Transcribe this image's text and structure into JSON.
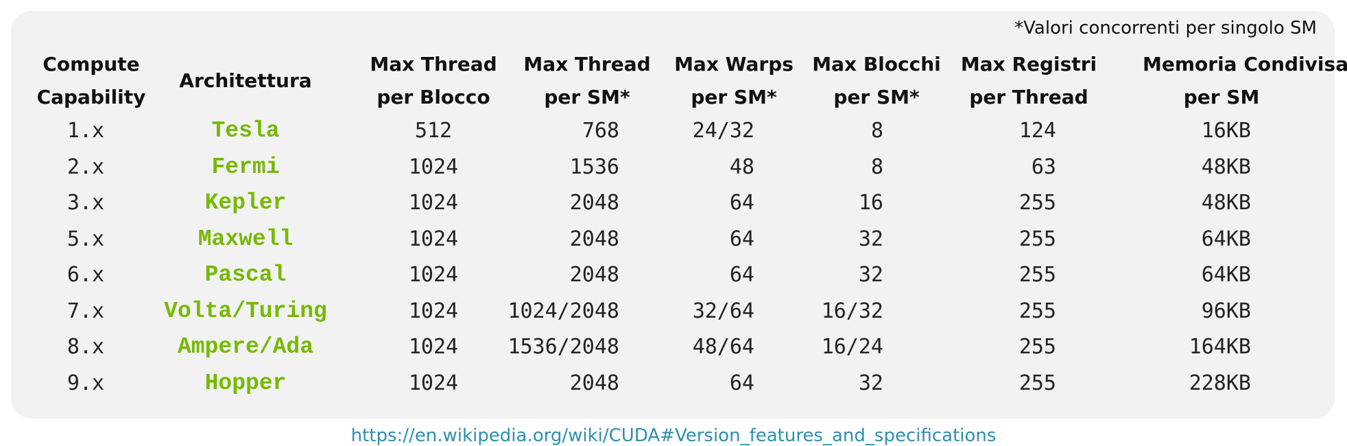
{
  "note": "*Valori concorrenti per singolo SM",
  "headers": [
    [
      "Compute",
      "Capability"
    ],
    [
      "Architettura"
    ],
    [
      "Max Thread",
      "per Blocco"
    ],
    [
      "Max Thread",
      "per SM*"
    ],
    [
      "Max Warps",
      "per SM*"
    ],
    [
      "Max Blocchi",
      "per SM*"
    ],
    [
      "Max Registri",
      "per Thread"
    ],
    [
      "Memoria Condivisa",
      "per SM"
    ]
  ],
  "rows": [
    [
      "1.x",
      "Tesla",
      "512",
      "768",
      "24/32",
      "8",
      "124",
      "16KB"
    ],
    [
      "2.x",
      "Fermi",
      "1024",
      "1536",
      "48",
      "8",
      "63",
      "48KB"
    ],
    [
      "3.x",
      "Kepler",
      "1024",
      "2048",
      "64",
      "16",
      "255",
      "48KB"
    ],
    [
      "5.x",
      "Maxwell",
      "1024",
      "2048",
      "64",
      "32",
      "255",
      "64KB"
    ],
    [
      "6.x",
      "Pascal",
      "1024",
      "2048",
      "64",
      "32",
      "255",
      "64KB"
    ],
    [
      "7.x",
      "Volta/Turing",
      "1024",
      "1024/2048",
      "32/64",
      "16/32",
      "255",
      "96KB"
    ],
    [
      "8.x",
      "Ampere/Ada",
      "1024",
      "1536/2048",
      "48/64",
      "16/24",
      "255",
      "164KB"
    ],
    [
      "9.x",
      "Hopper",
      "1024",
      "2048",
      "64",
      "32",
      "255",
      "228KB"
    ]
  ],
  "link": "https://en.wikipedia.org/wiki/CUDA#Version_features_and_specifications",
  "colors": {
    "architecture": "#76b900",
    "panel": "#f2f2f2",
    "link": "#2b8fb3"
  }
}
